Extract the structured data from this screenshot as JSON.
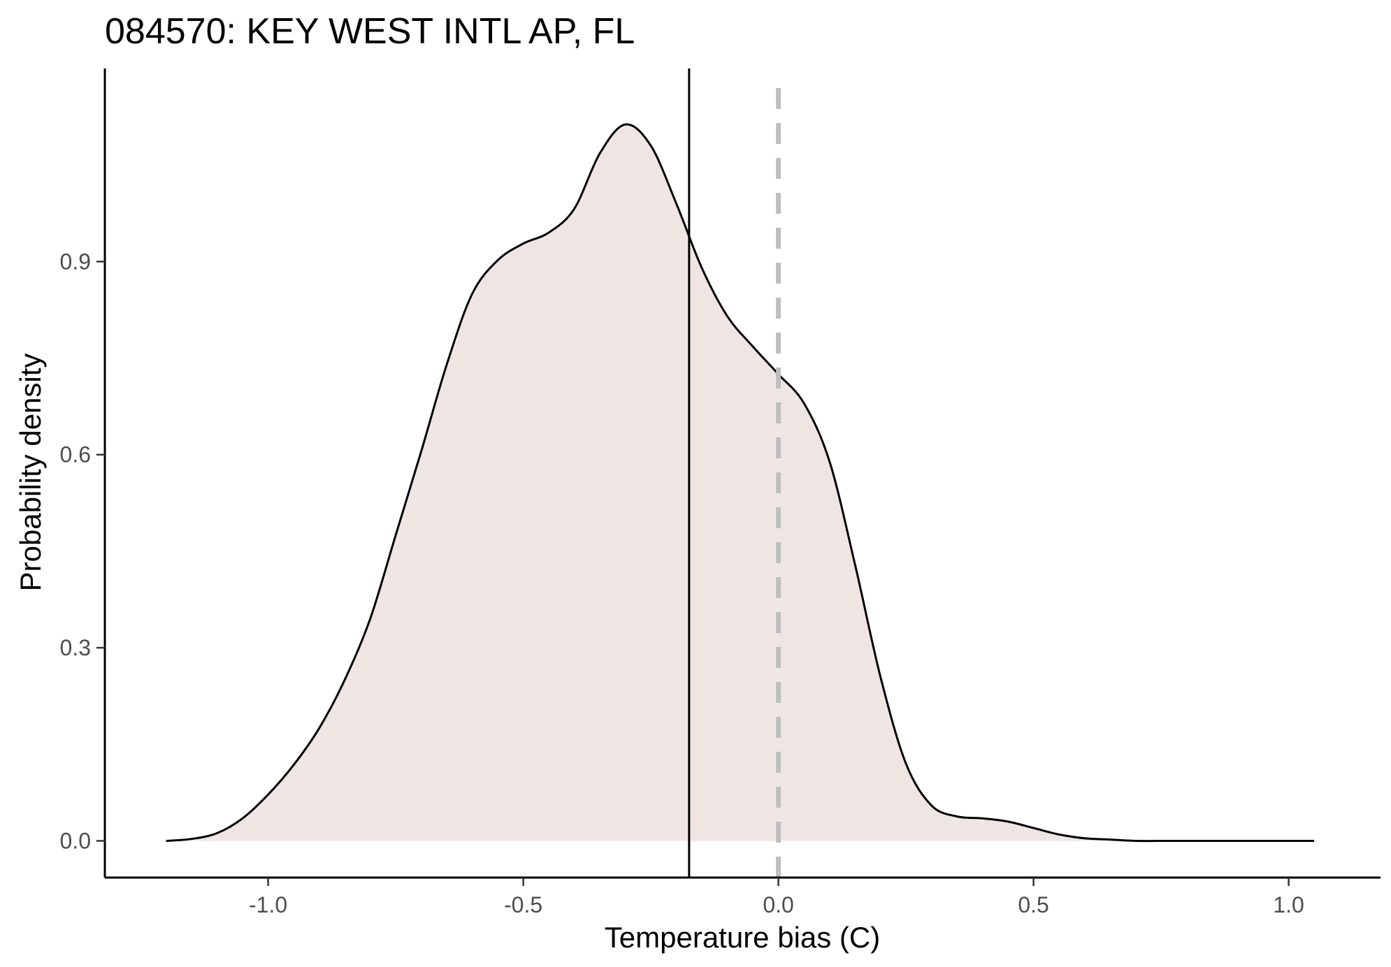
{
  "chart_data": {
    "type": "area",
    "title": "084570: KEY WEST INTL AP, FL",
    "xlabel": "Temperature bias (C)",
    "ylabel": "Probability density",
    "xlim": [
      -1.32,
      1.18
    ],
    "ylim": [
      -0.057,
      1.2
    ],
    "x_ticks": [
      -1.0,
      -0.5,
      0.0,
      0.5,
      1.0
    ],
    "x_tick_labels": [
      "-1.0",
      "-0.5",
      "0.0",
      "0.5",
      "1.0"
    ],
    "y_ticks": [
      0.0,
      0.3,
      0.6,
      0.9
    ],
    "y_tick_labels": [
      "0.0",
      "0.3",
      "0.6",
      "0.9"
    ],
    "grid": false,
    "fill_color": "#efe6e3",
    "line_color": "#000000",
    "mean_line": {
      "x": -0.175,
      "color": "#000000",
      "style": "solid"
    },
    "zero_line": {
      "x": 0.0,
      "color": "#bebebe",
      "style": "dashed"
    },
    "series": [
      {
        "x": [
          -1.2,
          -1.15,
          -1.1,
          -1.05,
          -1.0,
          -0.95,
          -0.9,
          -0.85,
          -0.8,
          -0.75,
          -0.7,
          -0.65,
          -0.6,
          -0.55,
          -0.5,
          -0.45,
          -0.4,
          -0.35,
          -0.3,
          -0.25,
          -0.2,
          -0.15,
          -0.1,
          -0.05,
          0.0,
          0.05,
          0.1,
          0.15,
          0.2,
          0.25,
          0.3,
          0.35,
          0.4,
          0.45,
          0.5,
          0.55,
          0.6,
          0.65,
          0.7,
          0.75,
          0.8,
          0.85,
          0.9,
          0.95,
          1.0,
          1.05
        ],
        "y": [
          0.0,
          0.003,
          0.012,
          0.035,
          0.072,
          0.118,
          0.175,
          0.25,
          0.345,
          0.475,
          0.605,
          0.74,
          0.85,
          0.902,
          0.928,
          0.945,
          0.982,
          1.068,
          1.113,
          1.08,
          0.99,
          0.89,
          0.815,
          0.768,
          0.725,
          0.68,
          0.59,
          0.43,
          0.255,
          0.12,
          0.055,
          0.038,
          0.035,
          0.03,
          0.02,
          0.01,
          0.004,
          0.002,
          0.0,
          0.0,
          0.0,
          0.0,
          0.0,
          0.0,
          0.0,
          0.0
        ]
      }
    ]
  }
}
